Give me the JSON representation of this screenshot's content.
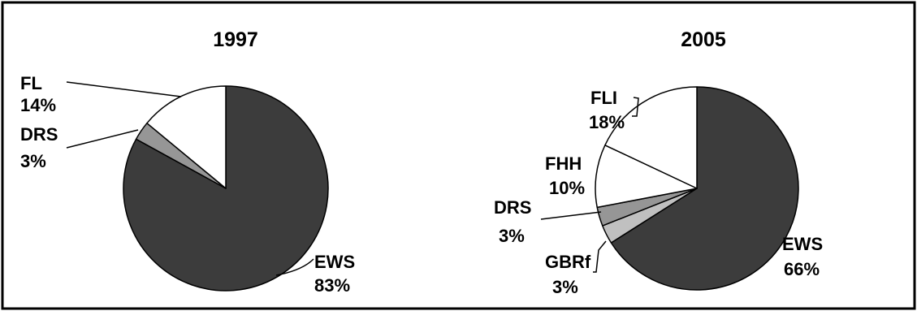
{
  "colors": {
    "EWS": "#3c3c3c",
    "DRS": "#969696",
    "GBRf": "#c0c0c0",
    "white_slice": "#ffffff",
    "outline": "#000000",
    "frame": "#000000"
  },
  "chart_data": [
    {
      "type": "pie",
      "title": "1997",
      "start_angle": "12 o'clock",
      "direction": "clockwise",
      "slices": [
        {
          "name": "EWS",
          "value": 83,
          "label": "83%",
          "color": "#3c3c3c"
        },
        {
          "name": "DRS",
          "value": 3,
          "label": "3%",
          "color": "#969696"
        },
        {
          "name": "FL",
          "value": 14,
          "label": "14%",
          "color": "#ffffff"
        }
      ]
    },
    {
      "type": "pie",
      "title": "2005",
      "start_angle": "12 o'clock",
      "direction": "clockwise",
      "slices": [
        {
          "name": "EWS",
          "value": 66,
          "label": "66%",
          "color": "#3c3c3c"
        },
        {
          "name": "GBRf",
          "value": 3,
          "label": "3%",
          "color": "#c0c0c0"
        },
        {
          "name": "DRS",
          "value": 3,
          "label": "3%",
          "color": "#969696"
        },
        {
          "name": "FHH",
          "value": 10,
          "label": "10%",
          "color": "#ffffff"
        },
        {
          "name": "FLI",
          "value": 18,
          "label": "18%",
          "color": "#ffffff"
        }
      ]
    }
  ]
}
